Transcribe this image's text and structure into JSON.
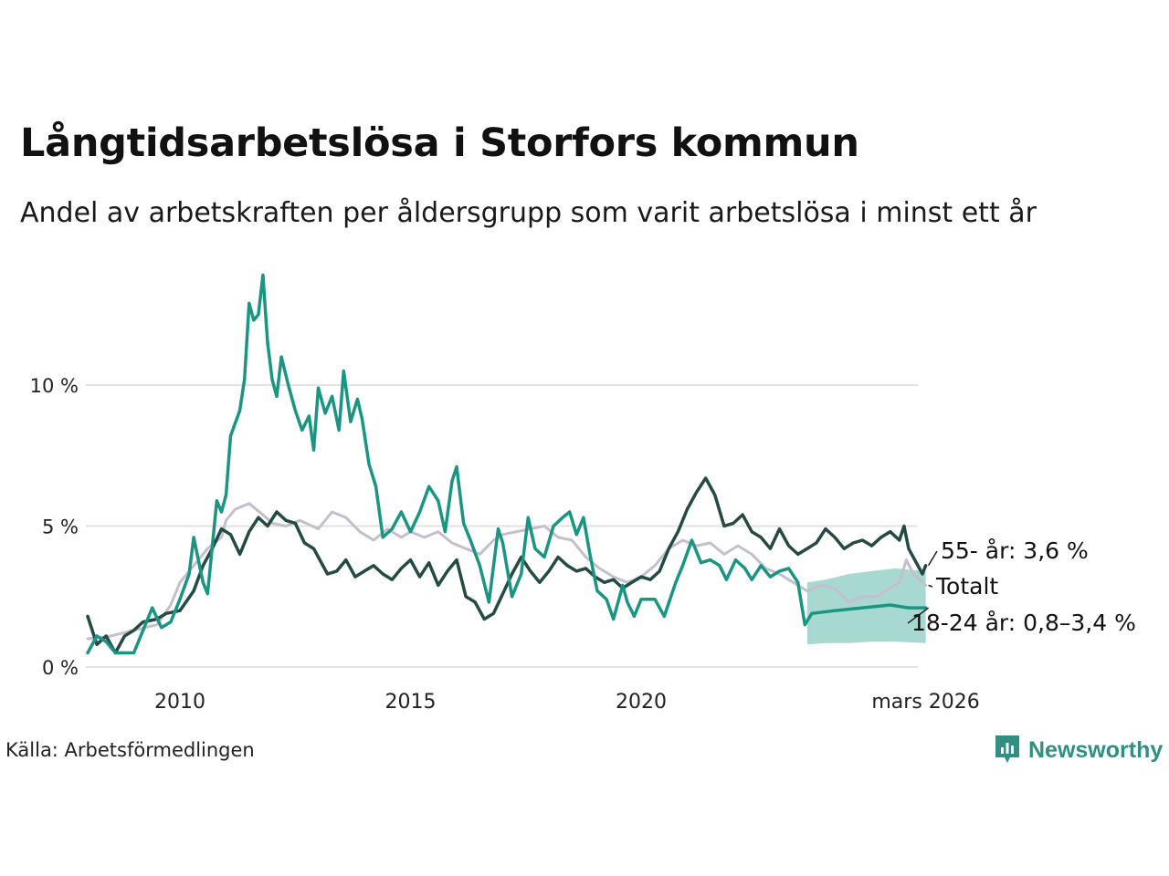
{
  "header": {
    "title": "Långtidsarbetslösa i Storfors kommun",
    "subtitle": "Andel av arbetskraften per åldersgrupp som varit arbetslösa i minst ett år"
  },
  "footer": {
    "source": "Källa: Arbetsförmedlingen",
    "brand": "Newsworthy"
  },
  "colors": {
    "youth": "#1a9582",
    "older": "#244a43",
    "total": "#c5bfcd",
    "band": "#a3d7cf",
    "grid": "#e3e3e3"
  },
  "chart_data": {
    "type": "line",
    "x_unit": "year (decimal)",
    "xlim": [
      2008.0,
      2026.17
    ],
    "ylim": [
      0,
      14.5
    ],
    "y_ticks": [
      {
        "value": 0,
        "label": "0 %"
      },
      {
        "value": 5,
        "label": "5 %"
      },
      {
        "value": 10,
        "label": "10 %"
      }
    ],
    "x_ticks": [
      {
        "value": 2010,
        "label": "2010"
      },
      {
        "value": 2015,
        "label": "2015"
      },
      {
        "value": 2020,
        "label": "2020"
      },
      {
        "value": 2026.17,
        "label": "mars 2026"
      }
    ],
    "series": [
      {
        "name": "Totalt",
        "label": "Totalt",
        "color": "#c5bfcd",
        "width": 3,
        "points": [
          [
            2008.0,
            1.0
          ],
          [
            2008.5,
            1.1
          ],
          [
            2009.0,
            1.3
          ],
          [
            2009.5,
            1.5
          ],
          [
            2009.8,
            2.2
          ],
          [
            2010.0,
            3.0
          ],
          [
            2010.3,
            3.6
          ],
          [
            2010.6,
            4.2
          ],
          [
            2010.9,
            4.6
          ],
          [
            2011.0,
            5.2
          ],
          [
            2011.2,
            5.6
          ],
          [
            2011.5,
            5.8
          ],
          [
            2011.8,
            5.4
          ],
          [
            2012.0,
            5.1
          ],
          [
            2012.3,
            5.0
          ],
          [
            2012.6,
            5.2
          ],
          [
            2013.0,
            4.9
          ],
          [
            2013.3,
            5.5
          ],
          [
            2013.6,
            5.3
          ],
          [
            2013.9,
            4.8
          ],
          [
            2014.2,
            4.5
          ],
          [
            2014.5,
            4.9
          ],
          [
            2014.8,
            4.6
          ],
          [
            2015.0,
            4.8
          ],
          [
            2015.3,
            4.6
          ],
          [
            2015.6,
            4.8
          ],
          [
            2015.9,
            4.4
          ],
          [
            2016.2,
            4.2
          ],
          [
            2016.5,
            4.0
          ],
          [
            2016.8,
            4.5
          ],
          [
            2017.0,
            4.7
          ],
          [
            2017.3,
            4.8
          ],
          [
            2017.6,
            4.9
          ],
          [
            2017.9,
            5.0
          ],
          [
            2018.2,
            4.6
          ],
          [
            2018.5,
            4.5
          ],
          [
            2018.8,
            3.9
          ],
          [
            2019.1,
            3.5
          ],
          [
            2019.4,
            3.2
          ],
          [
            2019.7,
            3.0
          ],
          [
            2020.0,
            3.2
          ],
          [
            2020.3,
            3.6
          ],
          [
            2020.6,
            4.2
          ],
          [
            2020.9,
            4.5
          ],
          [
            2021.2,
            4.3
          ],
          [
            2021.5,
            4.4
          ],
          [
            2021.8,
            4.0
          ],
          [
            2022.1,
            4.3
          ],
          [
            2022.4,
            4.0
          ],
          [
            2022.7,
            3.5
          ],
          [
            2023.0,
            3.3
          ],
          [
            2023.3,
            3.0
          ],
          [
            2023.6,
            2.7
          ],
          [
            2023.9,
            2.9
          ],
          [
            2024.2,
            2.8
          ],
          [
            2024.5,
            2.3
          ],
          [
            2024.8,
            2.5
          ],
          [
            2025.1,
            2.5
          ],
          [
            2025.4,
            2.8
          ],
          [
            2025.6,
            3.0
          ],
          [
            2025.75,
            3.8
          ],
          [
            2025.9,
            3.3
          ],
          [
            2026.17,
            2.9
          ]
        ]
      },
      {
        "name": "55- år",
        "label": "55- år: 3,6 %",
        "color": "#244a43",
        "width": 3.5,
        "points": [
          [
            2008.0,
            1.8
          ],
          [
            2008.2,
            0.8
          ],
          [
            2008.4,
            1.1
          ],
          [
            2008.6,
            0.5
          ],
          [
            2008.8,
            1.1
          ],
          [
            2009.0,
            1.3
          ],
          [
            2009.2,
            1.6
          ],
          [
            2009.5,
            1.7
          ],
          [
            2009.7,
            1.9
          ],
          [
            2010.0,
            2.0
          ],
          [
            2010.3,
            2.7
          ],
          [
            2010.5,
            3.6
          ],
          [
            2010.7,
            4.2
          ],
          [
            2010.9,
            4.9
          ],
          [
            2011.1,
            4.7
          ],
          [
            2011.3,
            4.0
          ],
          [
            2011.5,
            4.8
          ],
          [
            2011.7,
            5.3
          ],
          [
            2011.9,
            5.0
          ],
          [
            2012.1,
            5.5
          ],
          [
            2012.3,
            5.2
          ],
          [
            2012.5,
            5.1
          ],
          [
            2012.7,
            4.4
          ],
          [
            2012.9,
            4.2
          ],
          [
            2013.0,
            3.9
          ],
          [
            2013.2,
            3.3
          ],
          [
            2013.4,
            3.4
          ],
          [
            2013.6,
            3.8
          ],
          [
            2013.8,
            3.2
          ],
          [
            2014.0,
            3.4
          ],
          [
            2014.2,
            3.6
          ],
          [
            2014.4,
            3.3
          ],
          [
            2014.6,
            3.1
          ],
          [
            2014.8,
            3.5
          ],
          [
            2015.0,
            3.8
          ],
          [
            2015.2,
            3.2
          ],
          [
            2015.4,
            3.7
          ],
          [
            2015.6,
            2.9
          ],
          [
            2015.8,
            3.4
          ],
          [
            2016.0,
            3.8
          ],
          [
            2016.2,
            2.5
          ],
          [
            2016.4,
            2.3
          ],
          [
            2016.6,
            1.7
          ],
          [
            2016.8,
            1.9
          ],
          [
            2017.0,
            2.6
          ],
          [
            2017.2,
            3.3
          ],
          [
            2017.4,
            3.9
          ],
          [
            2017.6,
            3.4
          ],
          [
            2017.8,
            3.0
          ],
          [
            2018.0,
            3.4
          ],
          [
            2018.2,
            3.9
          ],
          [
            2018.4,
            3.6
          ],
          [
            2018.6,
            3.4
          ],
          [
            2018.8,
            3.5
          ],
          [
            2019.0,
            3.2
          ],
          [
            2019.2,
            3.0
          ],
          [
            2019.4,
            3.1
          ],
          [
            2019.6,
            2.8
          ],
          [
            2019.8,
            3.0
          ],
          [
            2020.0,
            3.2
          ],
          [
            2020.2,
            3.1
          ],
          [
            2020.4,
            3.4
          ],
          [
            2020.6,
            4.2
          ],
          [
            2020.8,
            4.8
          ],
          [
            2021.0,
            5.6
          ],
          [
            2021.2,
            6.2
          ],
          [
            2021.4,
            6.7
          ],
          [
            2021.6,
            6.1
          ],
          [
            2021.8,
            5.0
          ],
          [
            2022.0,
            5.1
          ],
          [
            2022.2,
            5.4
          ],
          [
            2022.4,
            4.8
          ],
          [
            2022.6,
            4.6
          ],
          [
            2022.8,
            4.2
          ],
          [
            2023.0,
            4.9
          ],
          [
            2023.2,
            4.3
          ],
          [
            2023.4,
            4.0
          ],
          [
            2023.6,
            4.2
          ],
          [
            2023.8,
            4.4
          ],
          [
            2024.0,
            4.9
          ],
          [
            2024.2,
            4.6
          ],
          [
            2024.4,
            4.2
          ],
          [
            2024.6,
            4.4
          ],
          [
            2024.8,
            4.5
          ],
          [
            2025.0,
            4.3
          ],
          [
            2025.2,
            4.6
          ],
          [
            2025.4,
            4.8
          ],
          [
            2025.6,
            4.5
          ],
          [
            2025.7,
            5.0
          ],
          [
            2025.8,
            4.2
          ],
          [
            2025.9,
            3.9
          ],
          [
            2026.0,
            3.6
          ],
          [
            2026.1,
            3.3
          ],
          [
            2026.17,
            3.6
          ]
        ]
      },
      {
        "name": "18-24 år",
        "label": "18-24 år: 0,8–3,4 %",
        "color": "#1a9582",
        "width": 3.5,
        "points": [
          [
            2008.0,
            0.5
          ],
          [
            2008.2,
            1.1
          ],
          [
            2008.4,
            0.9
          ],
          [
            2008.6,
            0.5
          ],
          [
            2008.8,
            0.5
          ],
          [
            2009.0,
            0.5
          ],
          [
            2009.2,
            1.3
          ],
          [
            2009.4,
            2.1
          ],
          [
            2009.6,
            1.4
          ],
          [
            2009.8,
            1.6
          ],
          [
            2010.0,
            2.4
          ],
          [
            2010.2,
            3.3
          ],
          [
            2010.3,
            4.6
          ],
          [
            2010.5,
            3.0
          ],
          [
            2010.6,
            2.6
          ],
          [
            2010.8,
            5.9
          ],
          [
            2010.9,
            5.5
          ],
          [
            2011.0,
            6.1
          ],
          [
            2011.1,
            8.2
          ],
          [
            2011.3,
            9.1
          ],
          [
            2011.4,
            10.2
          ],
          [
            2011.5,
            12.9
          ],
          [
            2011.6,
            12.3
          ],
          [
            2011.7,
            12.5
          ],
          [
            2011.8,
            13.9
          ],
          [
            2011.9,
            11.5
          ],
          [
            2012.0,
            10.2
          ],
          [
            2012.1,
            9.6
          ],
          [
            2012.2,
            11.0
          ],
          [
            2012.35,
            10.0
          ],
          [
            2012.5,
            9.1
          ],
          [
            2012.65,
            8.4
          ],
          [
            2012.8,
            8.9
          ],
          [
            2012.9,
            7.7
          ],
          [
            2013.0,
            9.9
          ],
          [
            2013.15,
            9.0
          ],
          [
            2013.3,
            9.6
          ],
          [
            2013.45,
            8.4
          ],
          [
            2013.55,
            10.5
          ],
          [
            2013.7,
            8.7
          ],
          [
            2013.85,
            9.5
          ],
          [
            2013.95,
            8.8
          ],
          [
            2014.1,
            7.2
          ],
          [
            2014.25,
            6.4
          ],
          [
            2014.4,
            4.6
          ],
          [
            2014.6,
            4.9
          ],
          [
            2014.8,
            5.5
          ],
          [
            2015.0,
            4.8
          ],
          [
            2015.2,
            5.5
          ],
          [
            2015.4,
            6.4
          ],
          [
            2015.6,
            5.9
          ],
          [
            2015.75,
            4.8
          ],
          [
            2015.9,
            6.6
          ],
          [
            2016.0,
            7.1
          ],
          [
            2016.15,
            5.1
          ],
          [
            2016.3,
            4.5
          ],
          [
            2016.5,
            3.6
          ],
          [
            2016.7,
            2.3
          ],
          [
            2016.9,
            4.9
          ],
          [
            2017.0,
            4.4
          ],
          [
            2017.2,
            2.5
          ],
          [
            2017.4,
            3.3
          ],
          [
            2017.55,
            5.3
          ],
          [
            2017.7,
            4.2
          ],
          [
            2017.9,
            3.9
          ],
          [
            2018.1,
            5.0
          ],
          [
            2018.3,
            5.3
          ],
          [
            2018.45,
            5.5
          ],
          [
            2018.6,
            4.7
          ],
          [
            2018.75,
            5.3
          ],
          [
            2018.9,
            3.9
          ],
          [
            2019.05,
            2.7
          ],
          [
            2019.25,
            2.4
          ],
          [
            2019.4,
            1.7
          ],
          [
            2019.6,
            2.9
          ],
          [
            2019.7,
            2.3
          ],
          [
            2019.85,
            1.8
          ],
          [
            2020.0,
            2.4
          ],
          [
            2020.3,
            2.4
          ],
          [
            2020.5,
            1.8
          ],
          [
            2020.75,
            3.0
          ],
          [
            2020.9,
            3.6
          ],
          [
            2021.1,
            4.5
          ],
          [
            2021.3,
            3.7
          ],
          [
            2021.5,
            3.8
          ],
          [
            2021.7,
            3.6
          ],
          [
            2021.85,
            3.1
          ],
          [
            2022.05,
            3.8
          ],
          [
            2022.25,
            3.5
          ],
          [
            2022.4,
            3.1
          ],
          [
            2022.6,
            3.6
          ],
          [
            2022.8,
            3.2
          ],
          [
            2023.0,
            3.4
          ],
          [
            2023.2,
            3.5
          ],
          [
            2023.4,
            3.0
          ],
          [
            2023.55,
            1.5
          ],
          [
            2023.7,
            1.9
          ],
          [
            2024.2,
            2.0
          ],
          [
            2024.8,
            2.1
          ],
          [
            2025.4,
            2.2
          ],
          [
            2025.8,
            2.1
          ],
          [
            2026.17,
            2.1
          ]
        ]
      }
    ],
    "forecast_band": {
      "series": "18-24 år",
      "x": [
        2023.6,
        2024.0,
        2024.5,
        2025.0,
        2025.5,
        2026.17
      ],
      "upper": [
        3.0,
        3.1,
        3.3,
        3.4,
        3.5,
        3.4
      ],
      "lower": [
        0.8,
        0.85,
        0.85,
        0.9,
        0.9,
        0.85
      ]
    }
  }
}
